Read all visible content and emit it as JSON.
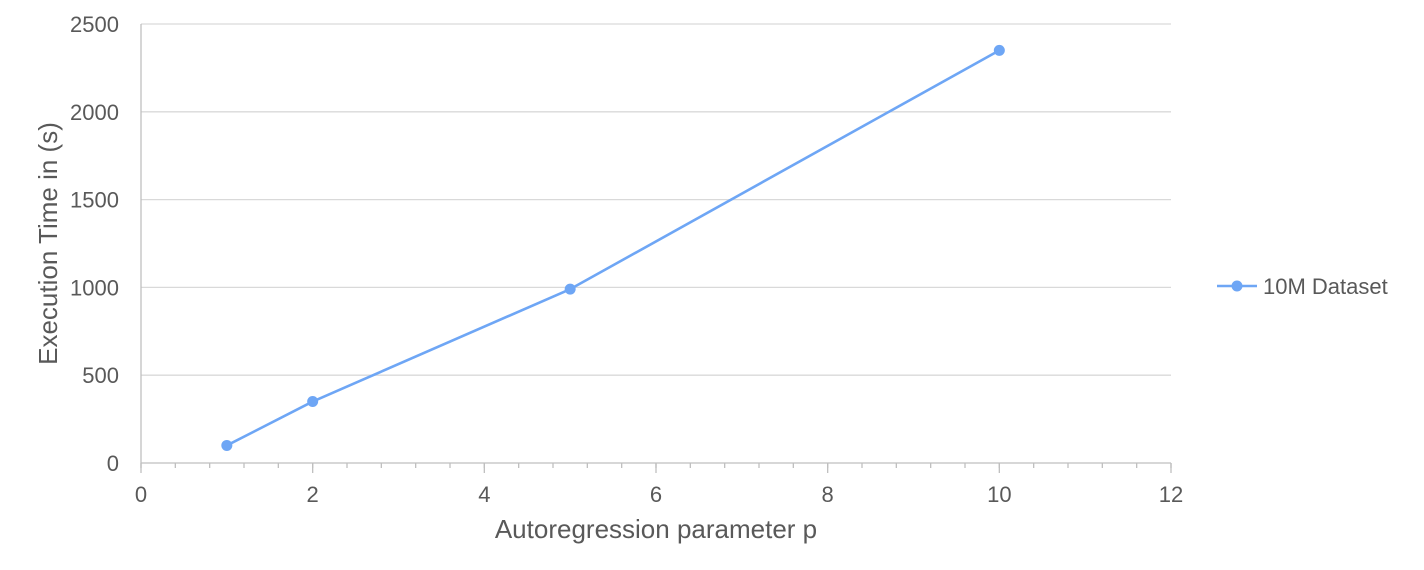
{
  "chart_data": {
    "type": "line",
    "title": "",
    "xlabel": "Autoregression parameter p",
    "ylabel": "Execution Time in (s)",
    "xlim": [
      0,
      12
    ],
    "ylim": [
      0,
      2500
    ],
    "x_ticks": [
      0,
      2,
      4,
      6,
      8,
      10,
      12
    ],
    "x_minor_step": 0.4,
    "y_ticks": [
      0,
      500,
      1000,
      1500,
      2000,
      2500
    ],
    "grid": "horizontal",
    "legend_position": "right",
    "series": [
      {
        "name": "10M Dataset",
        "color": "#6ea6f5",
        "marker": "circle",
        "x": [
          1,
          2,
          5,
          10
        ],
        "y": [
          100,
          350,
          990,
          2350
        ]
      }
    ]
  }
}
